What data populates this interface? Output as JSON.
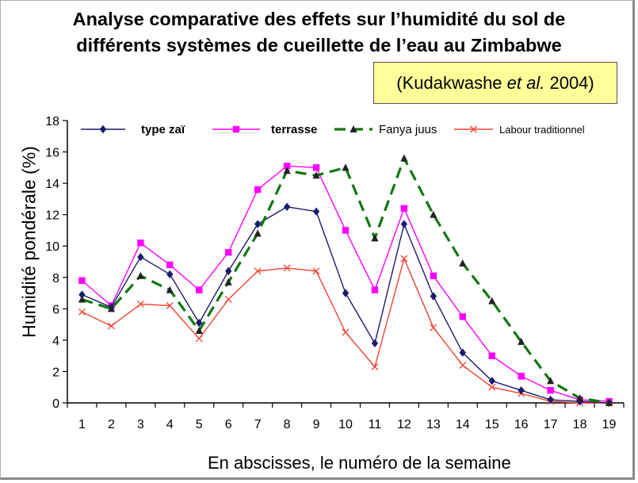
{
  "title_line1": "Analyse comparative des effets sur l’humidité du sol de",
  "title_line2": "différents systèmes de cueillette de l’eau au Zimbabwe",
  "citation": {
    "author": "Kudakwashe ",
    "etal": "et al.",
    "year": " 2004"
  },
  "x_caption": "En abscisses, le numéro de la semaine",
  "chart_data": {
    "type": "line",
    "ylabel": "Humidité pondérale (%)",
    "xlabel": "",
    "x": [
      1,
      2,
      3,
      4,
      5,
      6,
      7,
      8,
      9,
      10,
      11,
      12,
      13,
      14,
      15,
      16,
      17,
      18,
      19
    ],
    "ylim": [
      0,
      18
    ],
    "yticks": [
      0,
      2,
      4,
      6,
      8,
      10,
      12,
      14,
      16,
      18
    ],
    "legend_position": "top",
    "grid": false,
    "series": [
      {
        "name": "type zaï",
        "color": "#1a1a6e",
        "marker": "diamond",
        "dash": "solid",
        "values": [
          6.9,
          6.1,
          9.3,
          8.2,
          5.1,
          8.4,
          11.4,
          12.5,
          12.2,
          7.0,
          3.8,
          11.4,
          6.8,
          3.2,
          1.4,
          0.8,
          0.2,
          0.1,
          0.0
        ]
      },
      {
        "name": "terrasse",
        "color": "#ff00ff",
        "marker": "square",
        "dash": "solid",
        "values": [
          7.8,
          6.2,
          10.2,
          8.8,
          7.2,
          9.6,
          13.6,
          15.1,
          15.0,
          11.0,
          7.2,
          12.4,
          8.1,
          5.5,
          3.0,
          1.7,
          0.8,
          0.2,
          0.1
        ]
      },
      {
        "name": "Fanya juus",
        "color": "#117711",
        "marker": "triangle",
        "dash": "dashed",
        "values": [
          6.6,
          6.0,
          8.1,
          7.2,
          4.6,
          7.7,
          10.8,
          14.8,
          14.5,
          15.0,
          10.5,
          15.6,
          12.0,
          8.9,
          6.5,
          3.9,
          1.4,
          0.3,
          0.0
        ]
      },
      {
        "name": "Labour traditionnel",
        "color": "#ee4433",
        "marker": "x",
        "dash": "solid",
        "values": [
          5.8,
          4.9,
          6.3,
          6.2,
          4.1,
          6.6,
          8.4,
          8.6,
          8.4,
          4.5,
          2.3,
          9.2,
          4.8,
          2.4,
          1.0,
          0.6,
          0.1,
          0.0,
          0.0
        ]
      }
    ]
  }
}
